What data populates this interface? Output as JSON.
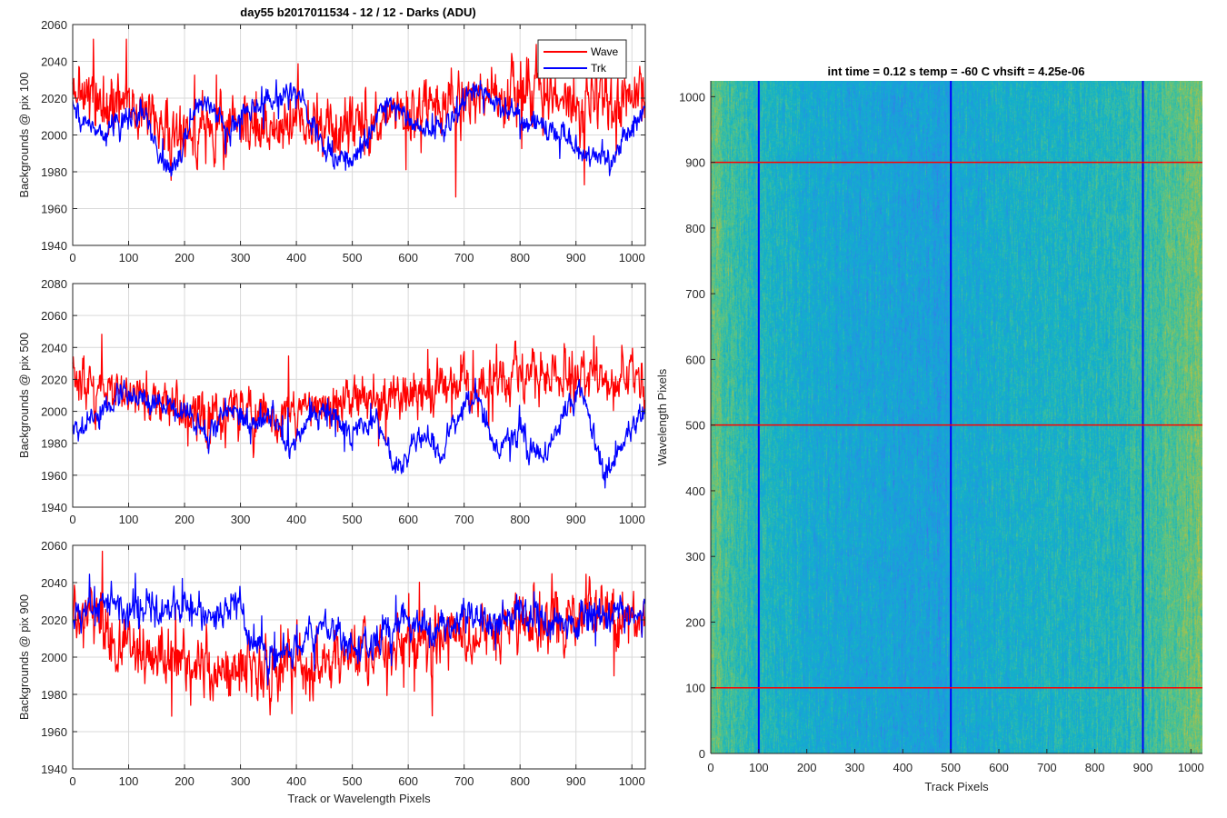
{
  "figure": {
    "title": "day55 b2017011534 - 12 / 12 - Darks (ADU)",
    "heatmap_title": "int time = 0.12 s    temp = -60 C    vhsift = 4.25e-06"
  },
  "colors": {
    "wave": "#ff0000",
    "trk": "#0000ff",
    "grid": "#d9d9d9",
    "axis": "#262626"
  },
  "chart_data": [
    {
      "type": "line",
      "id": "pix100",
      "title": "day55 b2017011534 - 12 / 12 - Darks (ADU)",
      "xlabel": "",
      "ylabel": "Backgrounds @ pix 100",
      "xlim": [
        0,
        1024
      ],
      "ylim": [
        1940,
        2060
      ],
      "xticks": [
        0,
        100,
        200,
        300,
        400,
        500,
        600,
        700,
        800,
        900,
        1000
      ],
      "yticks": [
        1940,
        1960,
        1980,
        2000,
        2020,
        2040,
        2060
      ],
      "grid": true,
      "legend": {
        "placement": "top-right",
        "entries": [
          "Wave",
          "Trk"
        ]
      },
      "series": [
        {
          "name": "Wave",
          "color": "#ff0000",
          "trend_x": [
            0,
            50,
            100,
            150,
            200,
            250,
            300,
            350,
            400,
            450,
            500,
            550,
            600,
            650,
            700,
            750,
            800,
            850,
            900,
            950,
            1000,
            1024
          ],
          "trend_y": [
            2025,
            2020,
            2015,
            2005,
            2000,
            2003,
            2005,
            2005,
            2003,
            2005,
            2007,
            2010,
            2012,
            2015,
            2020,
            2022,
            2022,
            2020,
            2018,
            2020,
            2022,
            2020
          ],
          "noise": 11,
          "min": 1958,
          "max": 2052
        },
        {
          "name": "Trk",
          "color": "#0000ff",
          "trend_x": [
            0,
            30,
            60,
            100,
            130,
            160,
            180,
            200,
            230,
            260,
            280,
            300,
            330,
            360,
            400,
            430,
            460,
            500,
            530,
            560,
            600,
            640,
            680,
            720,
            760,
            800,
            840,
            880,
            920,
            960,
            1000,
            1024
          ],
          "trend_y": [
            2015,
            2005,
            2000,
            2010,
            2010,
            1985,
            1980,
            2000,
            2020,
            2010,
            2000,
            2010,
            2015,
            2020,
            2025,
            2005,
            1990,
            1985,
            2000,
            2020,
            2010,
            2000,
            2010,
            2025,
            2018,
            2010,
            2005,
            2000,
            1990,
            1985,
            2005,
            2015
          ],
          "noise": 4,
          "min": 1972,
          "max": 2048
        }
      ]
    },
    {
      "type": "line",
      "id": "pix500",
      "title": "",
      "xlabel": "",
      "ylabel": "Backgrounds @ pix 500",
      "xlim": [
        0,
        1024
      ],
      "ylim": [
        1940,
        2080
      ],
      "xticks": [
        0,
        100,
        200,
        300,
        400,
        500,
        600,
        700,
        800,
        900,
        1000
      ],
      "yticks": [
        1940,
        1960,
        1980,
        2000,
        2020,
        2040,
        2060,
        2080
      ],
      "grid": true,
      "series": [
        {
          "name": "Wave",
          "color": "#ff0000",
          "trend_x": [
            0,
            50,
            100,
            150,
            200,
            250,
            300,
            350,
            400,
            450,
            500,
            550,
            600,
            650,
            700,
            750,
            800,
            850,
            900,
            950,
            1000,
            1024
          ],
          "trend_y": [
            2020,
            2015,
            2012,
            2005,
            2000,
            1997,
            1995,
            1997,
            2000,
            2003,
            2005,
            2008,
            2010,
            2013,
            2015,
            2018,
            2020,
            2020,
            2022,
            2022,
            2022,
            2025
          ],
          "noise": 10,
          "min": 1946,
          "max": 2062
        },
        {
          "name": "Trk",
          "color": "#0000ff",
          "trend_x": [
            0,
            40,
            80,
            110,
            150,
            200,
            240,
            280,
            320,
            360,
            380,
            420,
            460,
            500,
            540,
            580,
            620,
            660,
            700,
            720,
            760,
            800,
            840,
            880,
            910,
            950,
            1000,
            1024
          ],
          "trend_y": [
            1990,
            1995,
            2008,
            2012,
            2005,
            2000,
            1985,
            2005,
            1990,
            2000,
            1975,
            1995,
            2000,
            1985,
            1995,
            1965,
            1985,
            1975,
            2005,
            2010,
            1975,
            1985,
            1970,
            1995,
            2015,
            1960,
            1990,
            2000
          ],
          "noise": 5,
          "min": 1952,
          "max": 2025
        }
      ]
    },
    {
      "type": "line",
      "id": "pix900",
      "title": "",
      "xlabel": "Track or Wavelength Pixels",
      "ylabel": "Backgrounds @ pix 900",
      "xlim": [
        0,
        1024
      ],
      "ylim": [
        1940,
        2060
      ],
      "xticks": [
        0,
        100,
        200,
        300,
        400,
        500,
        600,
        700,
        800,
        900,
        1000
      ],
      "yticks": [
        1940,
        1960,
        1980,
        2000,
        2020,
        2040,
        2060
      ],
      "grid": true,
      "series": [
        {
          "name": "Wave",
          "color": "#ff0000",
          "trend_x": [
            0,
            50,
            100,
            150,
            200,
            250,
            300,
            350,
            400,
            450,
            500,
            550,
            600,
            650,
            700,
            750,
            800,
            850,
            900,
            950,
            1000,
            1024
          ],
          "trend_y": [
            2022,
            2015,
            2008,
            2000,
            1995,
            1993,
            1992,
            1993,
            1995,
            1998,
            2000,
            2003,
            2005,
            2008,
            2012,
            2015,
            2018,
            2020,
            2022,
            2022,
            2022,
            2022
          ],
          "noise": 11,
          "min": 1955,
          "max": 2058
        },
        {
          "name": "Trk",
          "color": "#0000ff",
          "trend_x": [
            0,
            50,
            100,
            150,
            200,
            250,
            300,
            320,
            360,
            400,
            450,
            500,
            520,
            560,
            600,
            650,
            700,
            750,
            800,
            850,
            900,
            950,
            1000,
            1024
          ],
          "trend_y": [
            2022,
            2030,
            2025,
            2025,
            2030,
            2020,
            2030,
            2005,
            2000,
            2003,
            2018,
            2005,
            2003,
            2015,
            2020,
            2015,
            2020,
            2018,
            2025,
            2018,
            2020,
            2022,
            2025,
            2025
          ],
          "noise": 6,
          "min": 1985,
          "max": 2045
        }
      ]
    },
    {
      "type": "heatmap",
      "id": "dark-frame",
      "title": "int time = 0.12 s    temp = -60 C    vhsift = 4.25e-06",
      "xlabel": "Track Pixels",
      "ylabel": "Wavelength Pixels",
      "xlim": [
        0,
        1024
      ],
      "ylim": [
        0,
        1024
      ],
      "xticks": [
        0,
        100,
        200,
        300,
        400,
        500,
        600,
        700,
        800,
        900,
        1000
      ],
      "yticks": [
        0,
        100,
        200,
        300,
        400,
        500,
        600,
        700,
        800,
        900,
        1000
      ],
      "colormap": "parula",
      "column_profile_x": [
        0,
        40,
        100,
        200,
        300,
        400,
        480,
        520,
        600,
        700,
        800,
        870,
        920,
        960,
        1000,
        1024
      ],
      "column_profile_v": [
        0.62,
        0.55,
        0.48,
        0.42,
        0.38,
        0.36,
        0.35,
        0.4,
        0.43,
        0.45,
        0.47,
        0.5,
        0.56,
        0.6,
        0.63,
        0.65
      ],
      "vertical_markers": {
        "color": "#0000ff",
        "x": [
          100,
          500,
          900
        ]
      },
      "horizontal_markers": {
        "color": "#ff0000",
        "y": [
          100,
          500,
          900
        ]
      }
    }
  ]
}
